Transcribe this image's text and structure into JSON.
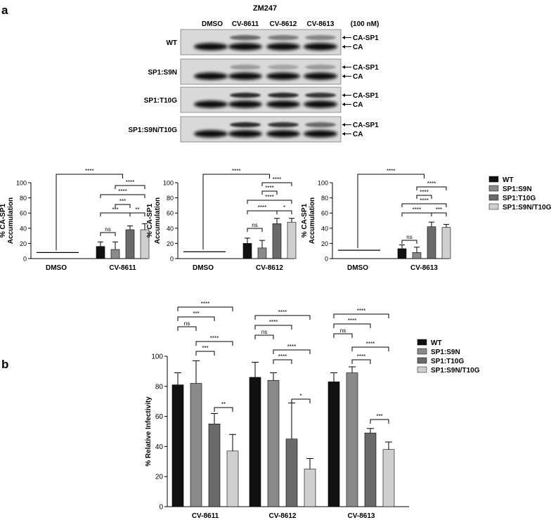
{
  "panel_a": {
    "letter": "a",
    "blot": {
      "title": "ZM247",
      "lanes": [
        "DMSO",
        "CV-8611",
        "CV-8612",
        "CV-8613"
      ],
      "concentration": "(100 nM)",
      "rows": [
        {
          "label": "WT",
          "bands": [
            "CA-SP1",
            "CA"
          ]
        },
        {
          "label": "SP1:S9N",
          "bands": [
            "CA-SP1",
            "CA"
          ]
        },
        {
          "label": "SP1:T10G",
          "bands": [
            "CA-SP1",
            "CA"
          ]
        },
        {
          "label": "SP1:S9N/T10G",
          "bands": [
            "CA-SP1",
            "CA"
          ]
        }
      ]
    },
    "legend": [
      "WT",
      "SP1:S9N",
      "SP1:T10G",
      "SP1:S9N/T10G"
    ]
  },
  "panel_b": {
    "letter": "b",
    "legend": [
      "WT",
      "SP1:S9N",
      "SP1:T10G",
      "SP1:S9N/T10G"
    ]
  },
  "colors": {
    "WT": "#111111",
    "SP1:S9N": "#8a8a8a",
    "SP1:T10G": "#6a6a6a",
    "SP1:S9N/T10G": "#cfcfcf"
  },
  "chart_data": [
    {
      "type": "bar",
      "panel": "a",
      "ylabel": "% CA-SP1\nAccumulation",
      "ylim": [
        0,
        100
      ],
      "yticks": [
        0,
        20,
        40,
        60,
        80,
        100
      ],
      "categories": [
        "DMSO",
        "CV-8611"
      ],
      "series": [
        {
          "name": "WT",
          "values": [
            0,
            16
          ],
          "errors": [
            0,
            6
          ]
        },
        {
          "name": "SP1:S9N",
          "values": [
            0,
            12
          ],
          "errors": [
            0,
            10
          ]
        },
        {
          "name": "SP1:T10G",
          "values": [
            0,
            38
          ],
          "errors": [
            0,
            5
          ]
        },
        {
          "name": "SP1:S9N/T10G",
          "values": [
            0,
            38
          ],
          "errors": [
            0,
            8
          ]
        }
      ],
      "dmso_level": 8,
      "comparisons": [
        {
          "a": "DMSO",
          "b": "CV-8611",
          "label": "****"
        },
        {
          "a": 0,
          "b": 1,
          "label": "ns"
        },
        {
          "a": 0,
          "b": 2,
          "label": "***"
        },
        {
          "a": 1,
          "b": 2,
          "label": "***"
        },
        {
          "a": 2,
          "b": 3,
          "label": "**"
        },
        {
          "a": 0,
          "b": 3,
          "label": "****"
        },
        {
          "a": 1,
          "b": 3,
          "label": "****"
        }
      ]
    },
    {
      "type": "bar",
      "panel": "a",
      "ylabel": "% CA-SP1\nAccumulation",
      "ylim": [
        0,
        100
      ],
      "yticks": [
        0,
        20,
        40,
        60,
        80,
        100
      ],
      "categories": [
        "DMSO",
        "CV-8612"
      ],
      "series": [
        {
          "name": "WT",
          "values": [
            0,
            20
          ],
          "errors": [
            0,
            7
          ]
        },
        {
          "name": "SP1:S9N",
          "values": [
            0,
            14
          ],
          "errors": [
            0,
            10
          ]
        },
        {
          "name": "SP1:T10G",
          "values": [
            0,
            46
          ],
          "errors": [
            0,
            7
          ]
        },
        {
          "name": "SP1:S9N/T10G",
          "values": [
            0,
            48
          ],
          "errors": [
            0,
            5
          ]
        }
      ],
      "dmso_level": 9,
      "comparisons": [
        {
          "a": "DMSO",
          "b": "CV-8612",
          "label": "****"
        },
        {
          "a": 0,
          "b": 1,
          "label": "ns"
        },
        {
          "a": 0,
          "b": 2,
          "label": "****"
        },
        {
          "a": 2,
          "b": 3,
          "label": "*"
        },
        {
          "a": 0,
          "b": 3,
          "label": "****"
        },
        {
          "a": 1,
          "b": 2,
          "label": "****"
        },
        {
          "a": 1,
          "b": 3,
          "label": "****"
        }
      ]
    },
    {
      "type": "bar",
      "panel": "a",
      "ylabel": "% CA-SP1\nAccumulation",
      "ylim": [
        0,
        100
      ],
      "yticks": [
        0,
        20,
        40,
        60,
        80,
        100
      ],
      "categories": [
        "DMSO",
        "CV-8613"
      ],
      "series": [
        {
          "name": "WT",
          "values": [
            0,
            13
          ],
          "errors": [
            0,
            5
          ]
        },
        {
          "name": "SP1:S9N",
          "values": [
            0,
            8
          ],
          "errors": [
            0,
            7
          ]
        },
        {
          "name": "SP1:T10G",
          "values": [
            0,
            42
          ],
          "errors": [
            0,
            6
          ]
        },
        {
          "name": "SP1:S9N/T10G",
          "values": [
            0,
            41
          ],
          "errors": [
            0,
            4
          ]
        }
      ],
      "dmso_level": 11,
      "comparisons": [
        {
          "a": "DMSO",
          "b": "CV-8613",
          "label": "****"
        },
        {
          "a": 0,
          "b": 1,
          "label": "ns"
        },
        {
          "a": 0,
          "b": 2,
          "label": "****"
        },
        {
          "a": 2,
          "b": 3,
          "label": "***"
        },
        {
          "a": 0,
          "b": 3,
          "label": "****"
        },
        {
          "a": 1,
          "b": 2,
          "label": "****"
        },
        {
          "a": 1,
          "b": 3,
          "label": "****"
        }
      ]
    },
    {
      "type": "bar",
      "panel": "b",
      "ylabel": "% Relative Infectivity",
      "ylim": [
        0,
        100
      ],
      "yticks": [
        0,
        20,
        40,
        60,
        80,
        100
      ],
      "categories": [
        "CV-8611",
        "CV-8612",
        "CV-8613"
      ],
      "series": [
        {
          "name": "WT",
          "values": [
            81,
            86,
            83
          ],
          "errors": [
            8,
            10,
            6
          ]
        },
        {
          "name": "SP1:S9N",
          "values": [
            82,
            84,
            89
          ],
          "errors": [
            15,
            5,
            4
          ]
        },
        {
          "name": "SP1:T10G",
          "values": [
            55,
            45,
            49
          ],
          "errors": [
            7,
            24,
            3
          ]
        },
        {
          "name": "SP1:S9N/T10G",
          "values": [
            37,
            25,
            38
          ],
          "errors": [
            11,
            7,
            5
          ]
        }
      ],
      "comparisons": [
        [
          {
            "a": 0,
            "b": 1,
            "label": "ns"
          },
          {
            "a": 1,
            "b": 2,
            "label": "***"
          },
          {
            "a": 2,
            "b": 3,
            "label": "**"
          },
          {
            "a": 1,
            "b": 3,
            "label": "****"
          },
          {
            "a": 0,
            "b": 2,
            "label": "***"
          },
          {
            "a": 0,
            "b": 3,
            "label": "****"
          }
        ],
        [
          {
            "a": 0,
            "b": 1,
            "label": "ns"
          },
          {
            "a": 1,
            "b": 2,
            "label": "****"
          },
          {
            "a": 2,
            "b": 3,
            "label": "*"
          },
          {
            "a": 1,
            "b": 3,
            "label": "****"
          },
          {
            "a": 0,
            "b": 2,
            "label": "****"
          },
          {
            "a": 0,
            "b": 3,
            "label": "****"
          }
        ],
        [
          {
            "a": 0,
            "b": 1,
            "label": "ns"
          },
          {
            "a": 1,
            "b": 2,
            "label": "****"
          },
          {
            "a": 2,
            "b": 3,
            "label": "***"
          },
          {
            "a": 1,
            "b": 3,
            "label": "****"
          },
          {
            "a": 0,
            "b": 2,
            "label": "****"
          },
          {
            "a": 0,
            "b": 3,
            "label": "****"
          }
        ]
      ]
    }
  ]
}
